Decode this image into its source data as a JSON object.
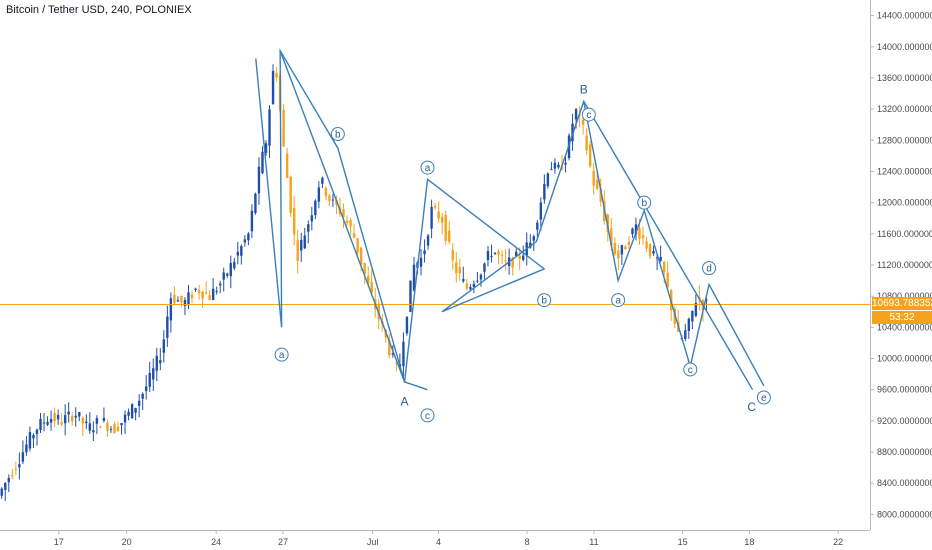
{
  "header": {
    "symbol_title": "Bitcoin / Tether USD, 240, POLONIEX"
  },
  "last_price": {
    "value": "10693.78835289",
    "countdown": "53:32"
  },
  "colors": {
    "up": "#1f4fa8",
    "down": "#f5a31a",
    "wave": "#3a7fb8",
    "price_line": "#f5a31a",
    "countdown_bg": "#f5a31a"
  },
  "chart_data": {
    "type": "candlestick",
    "title": "Bitcoin / Tether USD, 240, POLONIEX",
    "xlabel": "",
    "ylabel": "",
    "ylim": [
      7800,
      14600
    ],
    "y_ticks": [
      "8000.00000000",
      "8400.00000000",
      "8800.00000000",
      "9200.00000000",
      "9600.00000000",
      "10000.00000000",
      "10400.00000000",
      "10800.00000000",
      "11200.00000000",
      "11600.00000000",
      "12000.00000000",
      "12400.00000000",
      "12800.00000000",
      "13200.00000000",
      "13600.00000000",
      "14000.00000000",
      "14400.00000000"
    ],
    "x_ticks": [
      {
        "label": "17",
        "pos": 0.0676
      },
      {
        "label": "20",
        "pos": 0.1455
      },
      {
        "label": "24",
        "pos": 0.2485
      },
      {
        "label": "27",
        "pos": 0.3253
      },
      {
        "label": "Jul",
        "pos": 0.4283
      },
      {
        "label": "4",
        "pos": 0.504
      },
      {
        "label": "8",
        "pos": 0.6059
      },
      {
        "label": "11",
        "pos": 0.6827
      },
      {
        "label": "15",
        "pos": 0.7846
      },
      {
        "label": "18",
        "pos": 0.8614
      },
      {
        "label": "22",
        "pos": 0.9634
      }
    ],
    "price_anchors": [
      [
        0.0,
        8200
      ],
      [
        0.01,
        8400
      ],
      [
        0.02,
        8600
      ],
      [
        0.03,
        8800
      ],
      [
        0.045,
        9100
      ],
      [
        0.06,
        9250
      ],
      [
        0.075,
        9200
      ],
      [
        0.09,
        9300
      ],
      [
        0.105,
        9100
      ],
      [
        0.12,
        9200
      ],
      [
        0.135,
        9100
      ],
      [
        0.145,
        9200
      ],
      [
        0.16,
        9400
      ],
      [
        0.175,
        9700
      ],
      [
        0.19,
        10100
      ],
      [
        0.2,
        10800
      ],
      [
        0.215,
        10700
      ],
      [
        0.23,
        10900
      ],
      [
        0.245,
        10800
      ],
      [
        0.26,
        11000
      ],
      [
        0.275,
        11300
      ],
      [
        0.29,
        11600
      ],
      [
        0.3,
        12300
      ],
      [
        0.31,
        12800
      ],
      [
        0.32,
        13900
      ],
      [
        0.33,
        12700
      ],
      [
        0.345,
        11300
      ],
      [
        0.36,
        11800
      ],
      [
        0.372,
        12300
      ],
      [
        0.385,
        12000
      ],
      [
        0.395,
        11900
      ],
      [
        0.41,
        11600
      ],
      [
        0.425,
        11000
      ],
      [
        0.44,
        10500
      ],
      [
        0.455,
        10000
      ],
      [
        0.462,
        9800
      ],
      [
        0.47,
        10500
      ],
      [
        0.48,
        11200
      ],
      [
        0.49,
        11300
      ],
      [
        0.5,
        11900
      ],
      [
        0.512,
        11800
      ],
      [
        0.525,
        11200
      ],
      [
        0.54,
        10900
      ],
      [
        0.555,
        11100
      ],
      [
        0.57,
        11400
      ],
      [
        0.585,
        11200
      ],
      [
        0.6,
        11300
      ],
      [
        0.615,
        11500
      ],
      [
        0.625,
        12000
      ],
      [
        0.635,
        12500
      ],
      [
        0.645,
        12400
      ],
      [
        0.655,
        12600
      ],
      [
        0.665,
        13200
      ],
      [
        0.675,
        12900
      ],
      [
        0.685,
        12300
      ],
      [
        0.695,
        12000
      ],
      [
        0.705,
        11500
      ],
      [
        0.715,
        11300
      ],
      [
        0.725,
        11500
      ],
      [
        0.735,
        11700
      ],
      [
        0.745,
        11500
      ],
      [
        0.755,
        11300
      ],
      [
        0.765,
        11200
      ],
      [
        0.775,
        10700
      ],
      [
        0.785,
        10200
      ],
      [
        0.795,
        10400
      ],
      [
        0.805,
        10800
      ],
      [
        0.812,
        10700
      ]
    ],
    "last_price": 10693.78835289,
    "wave_labels": [
      {
        "text": "a",
        "circled": true,
        "x": 0.3237,
        "y": 10050
      },
      {
        "text": "b",
        "circled": true,
        "x": 0.3883,
        "y": 12880
      },
      {
        "text": "c",
        "circled": true,
        "x": 0.4914,
        "y": 9270
      },
      {
        "text": "A",
        "circled": false,
        "x": 0.465,
        "y": 9450
      },
      {
        "text": "a",
        "circled": true,
        "x": 0.4914,
        "y": 12450
      },
      {
        "text": "b",
        "circled": true,
        "x": 0.6255,
        "y": 10750
      },
      {
        "text": "B",
        "circled": false,
        "x": 0.671,
        "y": 13450
      },
      {
        "text": "c",
        "circled": true,
        "x": 0.6768,
        "y": 13130
      },
      {
        "text": "a",
        "circled": true,
        "x": 0.7105,
        "y": 10750
      },
      {
        "text": "b",
        "circled": true,
        "x": 0.7405,
        "y": 12000
      },
      {
        "text": "d",
        "circled": true,
        "x": 0.815,
        "y": 11160
      },
      {
        "text": "c",
        "circled": true,
        "x": 0.7934,
        "y": 9860
      },
      {
        "text": "C",
        "circled": false,
        "x": 0.864,
        "y": 9380
      },
      {
        "text": "e",
        "circled": true,
        "x": 0.878,
        "y": 9500
      }
    ],
    "wave_lines": [
      [
        [
          0.294,
          13850
        ],
        [
          0.3237,
          10400
        ],
        [
          0.322,
          13950
        ],
        [
          0.3883,
          12700
        ],
        [
          0.465,
          9700
        ],
        [
          0.4914,
          9600
        ]
      ],
      [
        [
          0.465,
          9700
        ],
        [
          0.4914,
          12300
        ],
        [
          0.6255,
          11150
        ],
        [
          0.508,
          10600
        ],
        [
          0.6165,
          11500
        ],
        [
          0.671,
          13300
        ],
        [
          0.865,
          9600
        ]
      ],
      [
        [
          0.322,
          13950
        ],
        [
          0.465,
          9700
        ]
      ],
      [
        [
          0.671,
          13300
        ],
        [
          0.7105,
          11000
        ],
        [
          0.7405,
          11900
        ],
        [
          0.7934,
          9900
        ],
        [
          0.815,
          10950
        ],
        [
          0.878,
          9650
        ]
      ]
    ]
  }
}
